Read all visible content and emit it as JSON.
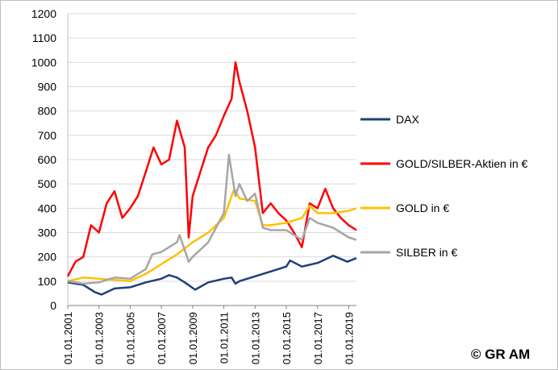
{
  "chart_data": {
    "type": "line",
    "title": "",
    "xlabel": "",
    "ylabel": "",
    "ylim": [
      0,
      1200
    ],
    "yticks": [
      0,
      100,
      200,
      300,
      400,
      500,
      600,
      700,
      800,
      900,
      1000,
      1100,
      1200
    ],
    "xlim": [
      "01.01.2001",
      "30.06.2019"
    ],
    "xticks": [
      "01.01.2001",
      "01.01.2003",
      "01.01.2005",
      "01.01.2007",
      "01.01.2009",
      "01.01.2011",
      "01.01.2013",
      "01.01.2015",
      "01.01.2017",
      "01.01.2019"
    ],
    "grid": "horizontal",
    "legend_position": "right",
    "series": [
      {
        "name": "DAX",
        "color": "#1f3f7a",
        "x": [
          "01.01.2001",
          "01.01.2002",
          "01.10.2002",
          "01.03.2003",
          "01.01.2004",
          "01.01.2005",
          "01.01.2006",
          "01.01.2007",
          "01.07.2007",
          "01.01.2008",
          "01.07.2008",
          "01.03.2009",
          "01.01.2010",
          "01.01.2011",
          "01.07.2011",
          "01.10.2011",
          "01.01.2012",
          "01.01.2013",
          "01.01.2014",
          "01.01.2015",
          "01.04.2015",
          "01.01.2016",
          "01.01.2017",
          "01.01.2018",
          "01.12.2018",
          "30.06.2019"
        ],
        "values": [
          95,
          85,
          55,
          45,
          70,
          75,
          95,
          110,
          125,
          115,
          95,
          65,
          95,
          110,
          115,
          90,
          100,
          120,
          140,
          160,
          185,
          160,
          175,
          205,
          180,
          195
        ]
      },
      {
        "name": "GOLD/SILBER-Aktien in €",
        "color": "#ff0000",
        "x": [
          "01.01.2001",
          "01.07.2001",
          "01.01.2002",
          "01.07.2002",
          "01.01.2003",
          "01.07.2003",
          "01.01.2004",
          "01.07.2004",
          "01.01.2005",
          "01.07.2005",
          "01.01.2006",
          "01.07.2006",
          "01.01.2007",
          "01.07.2007",
          "01.01.2008",
          "01.07.2008",
          "01.10.2008",
          "01.01.2009",
          "01.07.2009",
          "01.01.2010",
          "01.07.2010",
          "01.01.2011",
          "01.07.2011",
          "01.10.2011",
          "01.01.2012",
          "01.07.2012",
          "01.01.2013",
          "01.07.2013",
          "01.01.2014",
          "01.07.2014",
          "01.01.2015",
          "01.07.2015",
          "01.01.2016",
          "01.07.2016",
          "01.01.2017",
          "01.07.2017",
          "01.01.2018",
          "01.07.2018",
          "01.01.2019",
          "30.06.2019"
        ],
        "values": [
          120,
          180,
          200,
          330,
          300,
          420,
          470,
          360,
          400,
          450,
          550,
          650,
          580,
          600,
          760,
          650,
          280,
          450,
          550,
          650,
          700,
          780,
          850,
          1000,
          920,
          800,
          650,
          380,
          420,
          380,
          350,
          300,
          240,
          420,
          400,
          480,
          400,
          360,
          330,
          310
        ]
      },
      {
        "name": "GOLD in €",
        "color": "#ffc000",
        "x": [
          "01.01.2001",
          "01.01.2002",
          "01.01.2003",
          "01.01.2004",
          "01.01.2005",
          "01.01.2006",
          "01.01.2007",
          "01.01.2008",
          "01.01.2009",
          "01.01.2010",
          "01.01.2011",
          "01.09.2011",
          "01.01.2012",
          "01.01.2013",
          "01.07.2013",
          "01.01.2014",
          "01.01.2015",
          "01.01.2016",
          "01.07.2016",
          "01.01.2017",
          "01.01.2018",
          "01.01.2019",
          "30.06.2019"
        ],
        "values": [
          100,
          115,
          110,
          105,
          100,
          130,
          170,
          210,
          260,
          300,
          360,
          480,
          440,
          430,
          330,
          330,
          340,
          360,
          410,
          380,
          380,
          390,
          400
        ]
      },
      {
        "name": "SILBER in €",
        "color": "#a6a6a6",
        "x": [
          "01.01.2001",
          "01.01.2002",
          "01.01.2003",
          "01.01.2004",
          "01.01.2005",
          "01.01.2006",
          "01.06.2006",
          "01.01.2007",
          "01.01.2008",
          "01.03.2008",
          "01.10.2008",
          "01.01.2009",
          "01.01.2010",
          "01.01.2011",
          "01.05.2011",
          "01.10.2011",
          "01.01.2012",
          "01.07.2012",
          "01.01.2013",
          "01.07.2013",
          "01.01.2014",
          "01.01.2015",
          "01.01.2016",
          "01.07.2016",
          "01.01.2017",
          "01.01.2018",
          "01.01.2019",
          "30.06.2019"
        ],
        "values": [
          100,
          90,
          95,
          115,
          110,
          150,
          210,
          220,
          260,
          290,
          180,
          200,
          260,
          380,
          620,
          450,
          500,
          430,
          460,
          320,
          310,
          310,
          270,
          360,
          340,
          320,
          280,
          270
        ]
      }
    ]
  },
  "copyright": "© GR AM"
}
